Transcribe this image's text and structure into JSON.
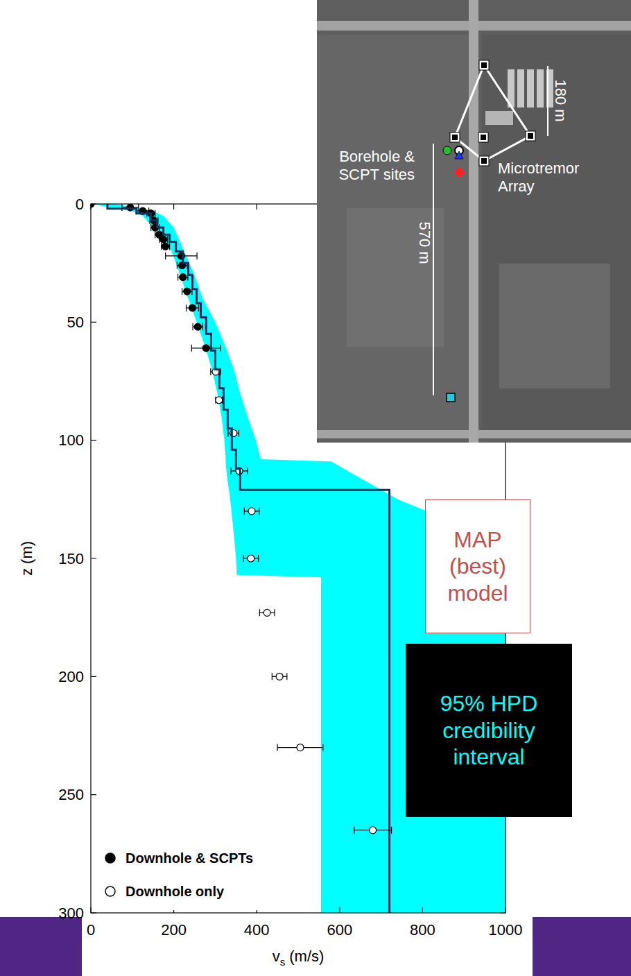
{
  "chart_data": {
    "type": "scatter",
    "xlabel": {
      "text": "v",
      "subscript": "s",
      "unit": " (m/s)"
    },
    "ylabel": "z (m)",
    "xlim": [
      0,
      1000
    ],
    "ylim": [
      300,
      0
    ],
    "xticks": [
      0,
      200,
      400,
      600,
      800,
      1000
    ],
    "yticks": [
      0,
      50,
      100,
      150,
      200,
      250,
      300
    ],
    "grid": false,
    "legend": "lower left",
    "series": [
      {
        "name": "Downhole & SCPTs",
        "type": "scatter",
        "marker": "filled-circle",
        "color": "#000000",
        "x": [
          0,
          95,
          125,
          145,
          152,
          155,
          165,
          175,
          180,
          218,
          220,
          222,
          232,
          245,
          258,
          278
        ],
        "values": [
          0,
          1.5,
          3,
          4,
          7,
          10,
          13,
          15,
          18,
          22,
          26,
          31,
          37,
          44,
          52,
          61
        ],
        "x_errors": [
          0,
          20,
          15,
          10,
          10,
          10,
          10,
          10,
          10,
          38,
          12,
          12,
          12,
          15,
          12,
          35
        ]
      },
      {
        "name": "Downhole only",
        "type": "scatter",
        "marker": "open-circle",
        "color": "#000000",
        "x": [
          301,
          309,
          344,
          358,
          388,
          386,
          425,
          455,
          505,
          680
        ],
        "values": [
          71,
          83,
          97,
          113,
          130,
          150,
          173,
          200,
          230,
          265
        ],
        "x_errors": [
          12,
          8,
          13,
          20,
          18,
          18,
          18,
          18,
          55,
          45
        ]
      },
      {
        "name": "MAP (best) model",
        "type": "step",
        "line_style": "solid",
        "color": "#13305e",
        "x": [
          40,
          110,
          145,
          160,
          175,
          190,
          205,
          222,
          235,
          245,
          255,
          265,
          278,
          290,
          300,
          310,
          320,
          330,
          340,
          350,
          360,
          720
        ],
        "values": [
          0,
          2,
          4,
          7,
          10,
          13,
          16,
          20,
          25,
          30,
          36,
          42,
          48,
          55,
          62,
          70,
          78,
          87,
          95,
          104,
          112,
          121
        ]
      },
      {
        "name": "95% HPD credibility interval",
        "type": "area",
        "color": "#00ffff",
        "values": [
          0,
          3,
          5,
          10,
          20,
          30,
          40,
          50,
          60,
          70,
          80,
          90,
          100,
          107,
          108,
          109,
          115,
          120,
          125,
          135,
          142,
          150,
          157,
          158,
          300
        ],
        "lower": [
          0,
          100,
          125,
          150,
          195,
          215,
          235,
          255,
          275,
          292,
          305,
          315,
          322,
          325,
          325,
          325,
          328,
          332,
          336,
          342,
          346,
          350,
          352,
          555,
          555
        ],
        "upper": [
          60,
          150,
          175,
          200,
          225,
          250,
          270,
          300,
          324,
          345,
          360,
          378,
          398,
          408,
          410,
          580,
          640,
          690,
          740,
          880,
          1000,
          1000,
          1000,
          1000,
          1000
        ]
      }
    ]
  },
  "inset": {
    "array_width": "180 m",
    "sites": "Borehole & SCPT sites",
    "line_length": "570 m",
    "array": "Microtremor Array"
  }
}
